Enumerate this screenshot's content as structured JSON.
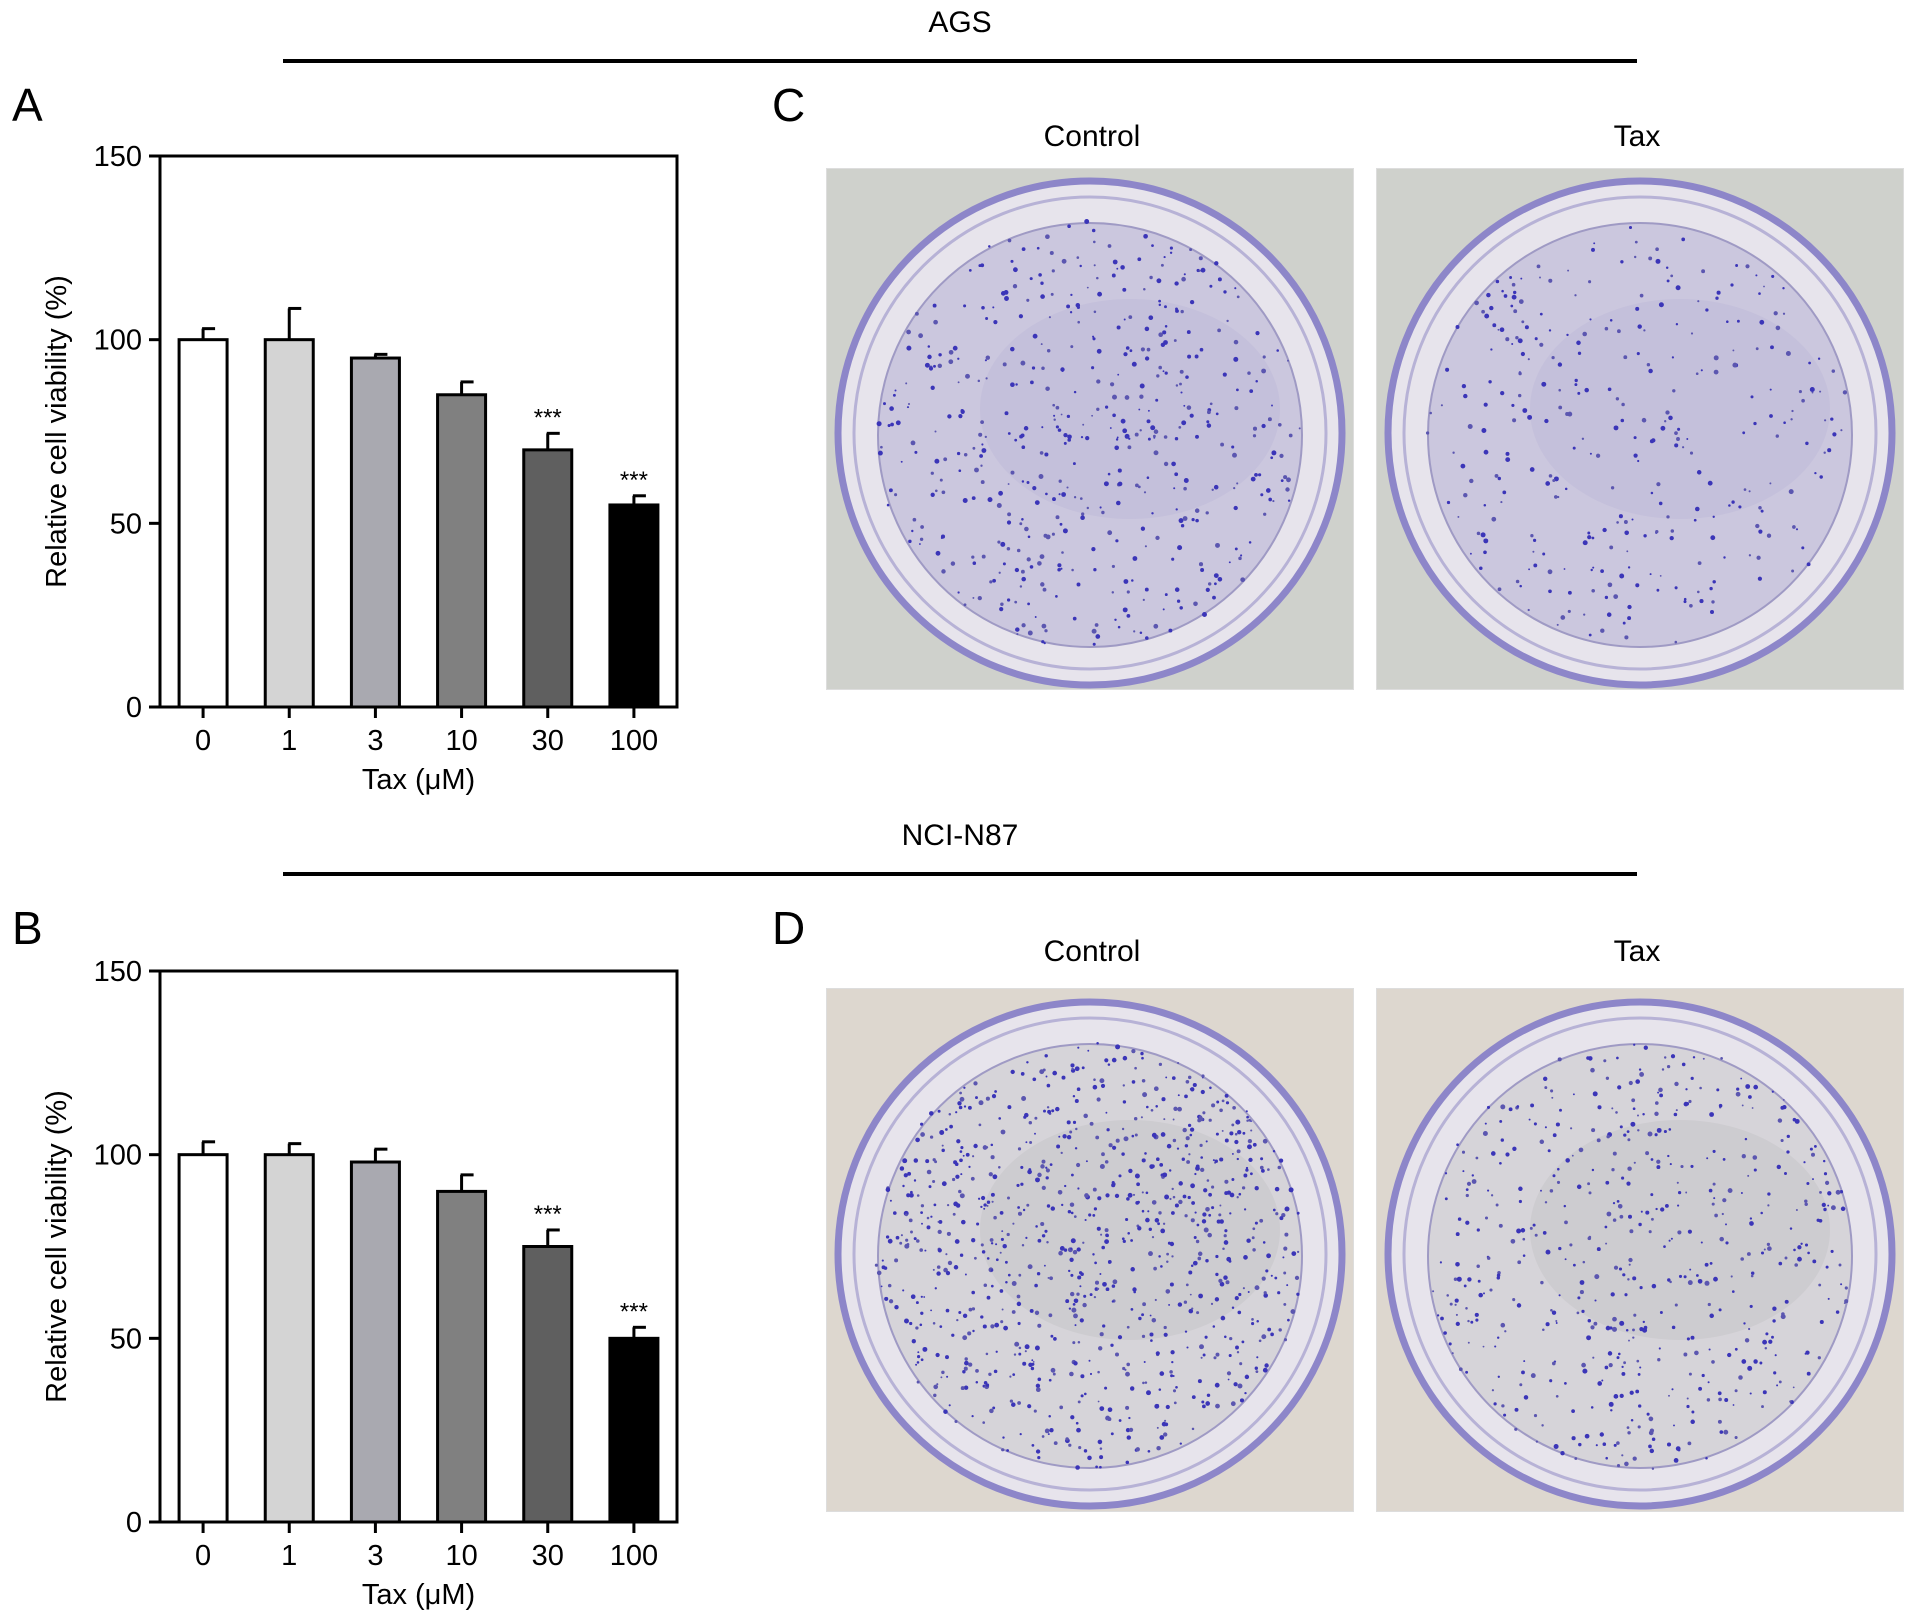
{
  "groups": [
    {
      "title": "AGS"
    },
    {
      "title": "NCI-N87"
    }
  ],
  "chart_data": [
    {
      "panel": "A",
      "type": "bar",
      "categories": [
        "0",
        "1",
        "3",
        "10",
        "30",
        "100"
      ],
      "values": [
        100,
        100,
        95,
        85,
        70,
        55
      ],
      "errors": [
        3,
        8.5,
        1,
        3.5,
        4.5,
        2.5
      ],
      "significance": [
        "",
        "",
        "",
        "",
        "***",
        "***"
      ],
      "bar_colors": [
        "#ffffff",
        "#d4d4d4",
        "#a9a9b0",
        "#808080",
        "#5f5f5f",
        "#000000"
      ],
      "title": "",
      "xlabel": "Tax (μM)",
      "ylabel": "Relative cell viability (%)",
      "ylim": [
        0,
        150
      ],
      "yticks": [
        0,
        50,
        100,
        150
      ],
      "grid": false
    },
    {
      "panel": "B",
      "type": "bar",
      "categories": [
        "0",
        "1",
        "3",
        "10",
        "30",
        "100"
      ],
      "values": [
        100,
        100,
        98,
        90,
        75,
        50
      ],
      "errors": [
        3.5,
        3,
        3.5,
        4.5,
        4.5,
        3
      ],
      "significance": [
        "",
        "",
        "",
        "",
        "***",
        "***"
      ],
      "bar_colors": [
        "#ffffff",
        "#d4d4d4",
        "#a9a9b0",
        "#808080",
        "#5f5f5f",
        "#000000"
      ],
      "title": "",
      "xlabel": "Tax (μM)",
      "ylabel": "Relative cell viability (%)",
      "ylim": [
        0,
        150
      ],
      "yticks": [
        0,
        50,
        100,
        150
      ],
      "grid": false
    }
  ],
  "photos": [
    {
      "panel": "C",
      "left_label": "Control",
      "right_label": "Tax"
    },
    {
      "panel": "D",
      "left_label": "Control",
      "right_label": "Tax"
    }
  ]
}
